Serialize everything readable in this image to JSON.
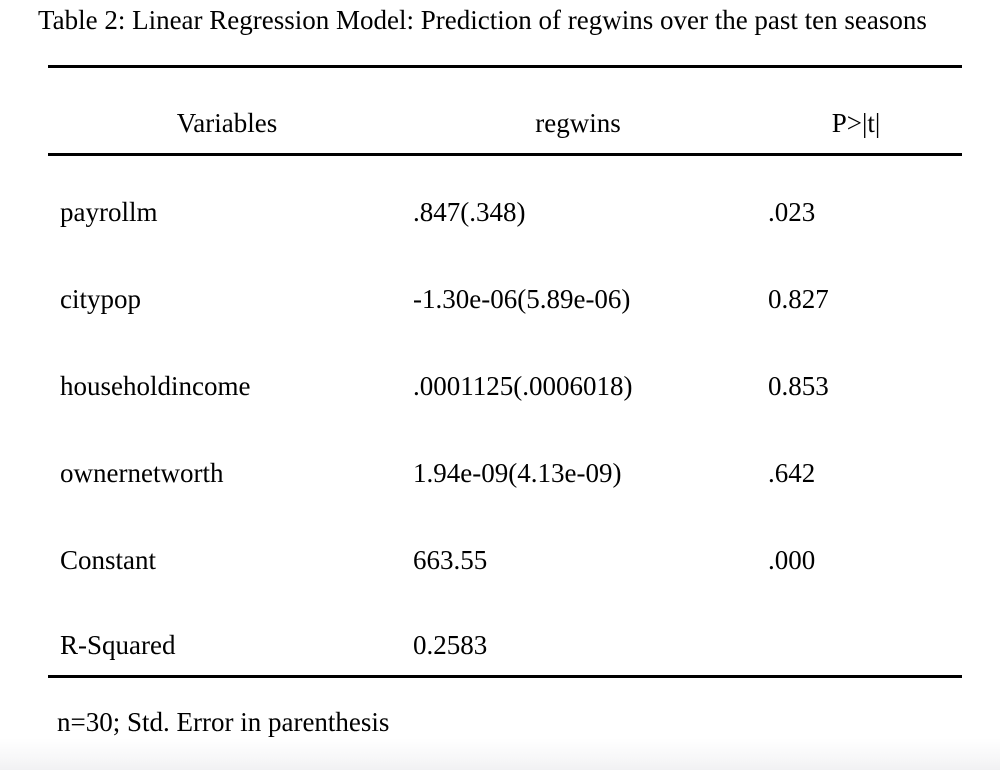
{
  "doc": {
    "title": "Table 2: Linear Regression Model: Prediction of regwins over the past ten seasons",
    "footnote": "n=30; Std. Error in parenthesis"
  },
  "table": {
    "headers": [
      "Variables",
      "regwins",
      "P>|t|"
    ],
    "rows": [
      {
        "variable": "payrollm",
        "coefficient": ".847(.348)",
        "p": ".023"
      },
      {
        "variable": "citypop",
        "coefficient": "-1.30e-06(5.89e-06)",
        "p": "0.827"
      },
      {
        "variable": "householdincome",
        "coefficient": ".0001125(.0006018)",
        "p": "0.853"
      },
      {
        "variable": "ownernetworth",
        "coefficient": "1.94e-09(4.13e-09)",
        "p": ".642"
      },
      {
        "variable": "Constant",
        "coefficient": "663.55",
        "p": ".000"
      },
      {
        "variable": "R-Squared",
        "coefficient": "0.2583",
        "p": ""
      }
    ]
  },
  "colors": {
    "text": "#000000",
    "rule": "#000000",
    "page_background": "#ffffff",
    "page_edge_gray": "#f1f1f3"
  }
}
